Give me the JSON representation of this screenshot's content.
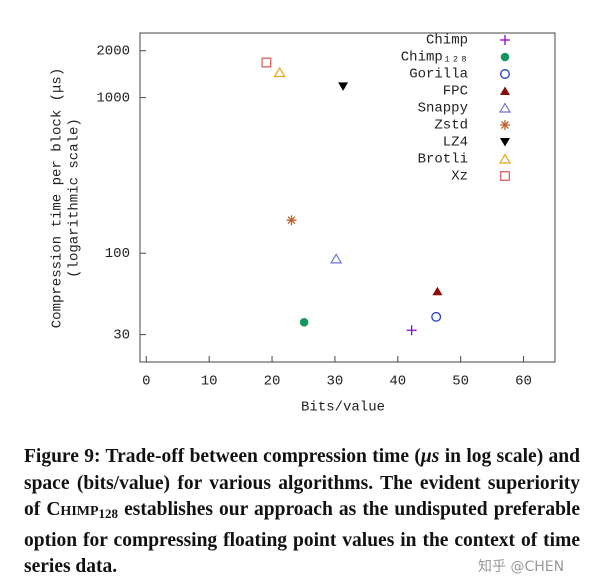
{
  "chart_data": {
    "type": "scatter",
    "y_label": [
      "Compression time per block (μs)",
      "(logarithmic scale)"
    ],
    "x_label": "Bits/value",
    "xlim": [
      -1,
      65
    ],
    "xticks": [
      0,
      10,
      20,
      30,
      40,
      50,
      60
    ],
    "ylim": [
      20,
      2600
    ],
    "yticks": [
      30,
      100,
      1000,
      2000
    ],
    "ylog": true,
    "legend": "top-right",
    "series": [
      {
        "name": "Chimp",
        "color": "#9400d3",
        "marker": "plus",
        "x": [
          42.2
        ],
        "values": [
          32
        ]
      },
      {
        "name": "Chimp₁₂₈",
        "color": "#13975f",
        "marker": "circle-filled",
        "x": [
          25.1
        ],
        "values": [
          36
        ]
      },
      {
        "name": "Gorilla",
        "color": "#1f3fbf",
        "marker": "circle",
        "x": [
          46.1
        ],
        "values": [
          39
        ]
      },
      {
        "name": "FPC",
        "color": "#8b0a0a",
        "marker": "triangle-filled",
        "x": [
          46.3
        ],
        "values": [
          57
        ]
      },
      {
        "name": "Snappy",
        "color": "#7272d8",
        "marker": "triangle",
        "x": [
          30.2
        ],
        "values": [
          92
        ]
      },
      {
        "name": "Zstd",
        "color": "#c0622b",
        "marker": "star",
        "x": [
          23.1
        ],
        "values": [
          163
        ]
      },
      {
        "name": "LZ4",
        "color": "#000000",
        "marker": "triangle-down-filled",
        "x": [
          31.3
        ],
        "values": [
          1180
        ]
      },
      {
        "name": "Brotli",
        "color": "#e8a317",
        "marker": "triangle",
        "x": [
          21.2
        ],
        "values": [
          1450
        ]
      },
      {
        "name": "Xz",
        "color": "#e06060",
        "marker": "square",
        "x": [
          19.1
        ],
        "values": [
          1680
        ]
      }
    ]
  },
  "caption": [
    "Figure 9: Trade-off between compression time (",
    "μs",
    " in log scale) and space (bits/value) for various algorithms. The evident superiority of ",
    "Chimp",
    "128",
    " establishes our approach as the undisputed preferable option for compressing floating point values in the context of time series data."
  ],
  "watermark": "知乎 @CHEN"
}
